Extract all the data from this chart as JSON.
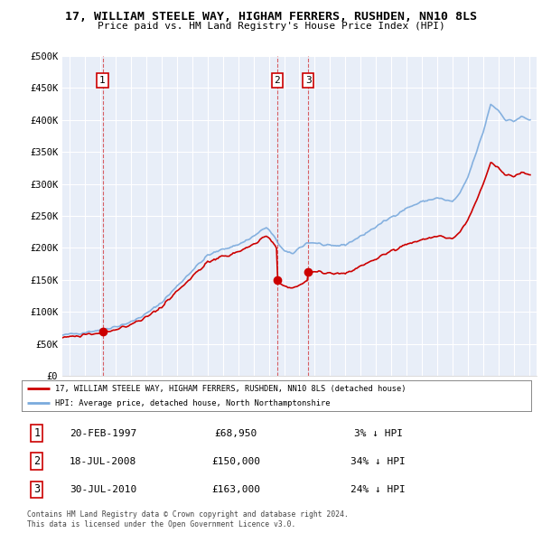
{
  "title": "17, WILLIAM STEELE WAY, HIGHAM FERRERS, RUSHDEN, NN10 8LS",
  "subtitle": "Price paid vs. HM Land Registry's House Price Index (HPI)",
  "legend_line1": "17, WILLIAM STEELE WAY, HIGHAM FERRERS, RUSHDEN, NN10 8LS (detached house)",
  "legend_line2": "HPI: Average price, detached house, North Northamptonshire",
  "footer1": "Contains HM Land Registry data © Crown copyright and database right 2024.",
  "footer2": "This data is licensed under the Open Government Licence v3.0.",
  "transactions": [
    {
      "num": 1,
      "date": "20-FEB-1997",
      "price": 68950,
      "year": 1997.13,
      "hpi_diff": "3% ↓ HPI"
    },
    {
      "num": 2,
      "date": "18-JUL-2008",
      "price": 150000,
      "year": 2008.54,
      "hpi_diff": "34% ↓ HPI"
    },
    {
      "num": 3,
      "date": "30-JUL-2010",
      "price": 163000,
      "year": 2010.58,
      "hpi_diff": "24% ↓ HPI"
    }
  ],
  "hpi_color": "#7aaadd",
  "price_color": "#cc0000",
  "background_color": "#e8eef8",
  "ylim": [
    0,
    500000
  ],
  "xlim_start": 1994.5,
  "xlim_end": 2025.5,
  "yticks": [
    0,
    50000,
    100000,
    150000,
    200000,
    250000,
    300000,
    350000,
    400000,
    450000,
    500000
  ],
  "xticks": [
    1995,
    1996,
    1997,
    1998,
    1999,
    2000,
    2001,
    2002,
    2003,
    2004,
    2005,
    2006,
    2007,
    2008,
    2009,
    2010,
    2011,
    2012,
    2013,
    2014,
    2015,
    2016,
    2017,
    2018,
    2019,
    2020,
    2021,
    2022,
    2023,
    2024,
    2025
  ]
}
